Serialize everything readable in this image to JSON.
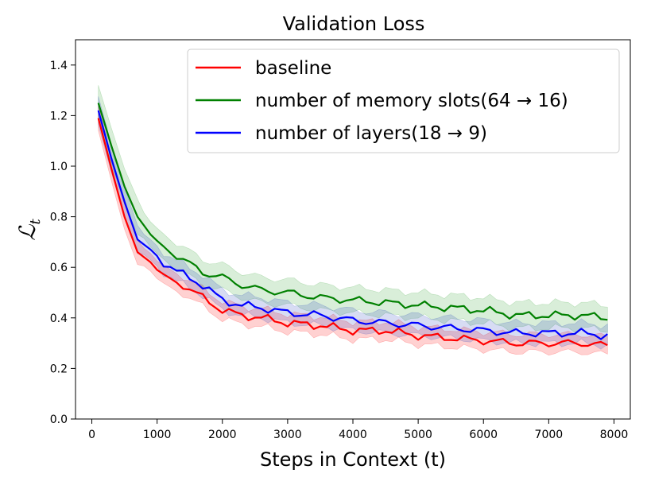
{
  "chart_data": {
    "type": "line",
    "title": "Validation Loss",
    "xlabel": "Steps in Context (t)",
    "ylabel": {
      "symbol": "ℒ",
      "subscript": "t"
    },
    "xlim": [
      -250,
      8250
    ],
    "ylim": [
      0.0,
      1.5
    ],
    "xticks": [
      0,
      1000,
      2000,
      3000,
      4000,
      5000,
      6000,
      7000,
      8000
    ],
    "xtick_labels": [
      "0",
      "1000",
      "2000",
      "3000",
      "4000",
      "5000",
      "6000",
      "7000",
      "8000"
    ],
    "yticks": [
      0.0,
      0.2,
      0.4,
      0.6,
      0.8,
      1.0,
      1.2,
      1.4
    ],
    "ytick_labels": [
      "0.0",
      "0.2",
      "0.4",
      "0.6",
      "0.8",
      "1.0",
      "1.2",
      "1.4"
    ],
    "grid": false,
    "legend_position": "top-right",
    "series": [
      {
        "name": "baseline",
        "color": "#ff0000",
        "band_color": "#ff0000",
        "anchors_x": [
          100,
          300,
          500,
          700,
          900,
          1100,
          1400,
          1700,
          2000,
          2300,
          2600,
          3000,
          3500,
          4000,
          4500,
          5000,
          5500,
          6000,
          6500,
          7000,
          7500,
          7900
        ],
        "anchors_y": [
          1.19,
          0.99,
          0.8,
          0.66,
          0.62,
          0.56,
          0.53,
          0.48,
          0.43,
          0.41,
          0.4,
          0.38,
          0.37,
          0.35,
          0.35,
          0.33,
          0.32,
          0.31,
          0.3,
          0.3,
          0.3,
          0.29
        ],
        "band_halfwidth": 0.035
      },
      {
        "name": "number of memory slots(64 → 16)",
        "color": "#008000",
        "band_color": "#2ca02c",
        "anchors_x": [
          100,
          300,
          500,
          700,
          900,
          1100,
          1400,
          1700,
          2000,
          2300,
          2600,
          3000,
          3500,
          4000,
          4500,
          5000,
          5500,
          6000,
          6500,
          7000,
          7500,
          7900
        ],
        "anchors_y": [
          1.25,
          1.08,
          0.92,
          0.8,
          0.73,
          0.68,
          0.63,
          0.58,
          0.56,
          0.53,
          0.51,
          0.5,
          0.48,
          0.47,
          0.46,
          0.45,
          0.44,
          0.43,
          0.41,
          0.41,
          0.41,
          0.4
        ],
        "band_halfwidth": 0.05
      },
      {
        "name": "number of layers(18 → 9)",
        "color": "#0000ff",
        "band_color": "#1f3fbf",
        "anchors_x": [
          100,
          300,
          500,
          700,
          900,
          1100,
          1400,
          1700,
          2000,
          2300,
          2600,
          3000,
          3500,
          4000,
          4500,
          5000,
          5500,
          6000,
          6500,
          7000,
          7500,
          7900
        ],
        "anchors_y": [
          1.22,
          1.03,
          0.86,
          0.71,
          0.67,
          0.62,
          0.57,
          0.53,
          0.47,
          0.45,
          0.44,
          0.42,
          0.41,
          0.39,
          0.38,
          0.37,
          0.36,
          0.35,
          0.34,
          0.34,
          0.34,
          0.33
        ],
        "band_halfwidth": 0.04
      }
    ]
  }
}
